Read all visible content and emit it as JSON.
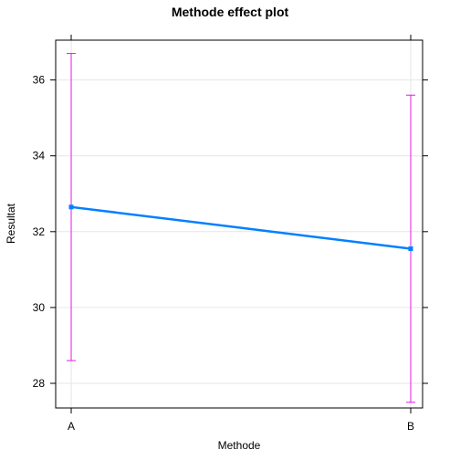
{
  "chart_data": {
    "type": "line",
    "title": "Methode effect plot",
    "xlabel": "Methode",
    "ylabel": "Resultat",
    "categories": [
      "A",
      "B"
    ],
    "series": [
      {
        "values": [
          32.65,
          31.55
        ],
        "lower": [
          28.6,
          27.5
        ],
        "upper": [
          36.7,
          35.6
        ]
      }
    ],
    "yticks": [
      28,
      30,
      32,
      34,
      36
    ],
    "ylim": [
      27.35,
      37.05
    ],
    "grid": true,
    "colors": {
      "line": "#0080ff",
      "error_bar": "#e619e6",
      "grid": "#e6e6e6",
      "frame": "#000000"
    }
  }
}
